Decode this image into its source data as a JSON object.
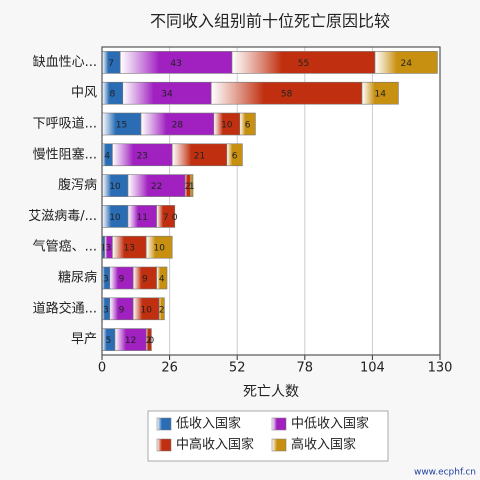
{
  "chart_data": {
    "type": "stacked-bar-horizontal",
    "title": "不同收入组别前十位死亡原因比较",
    "x_label": "死亡人数",
    "watermark": "www.ecphf.cn",
    "categories": [
      "缺血性心...",
      "中风",
      "下呼吸道...",
      "慢性阻塞...",
      "腹泻病",
      "艾滋病毒/...",
      "气管癌、...",
      "糖尿病",
      "道路交通...",
      "早产"
    ],
    "series": [
      {
        "name": "低收入国家",
        "color": "#2a6db5",
        "values": [
          7,
          8,
          15,
          4,
          10,
          10,
          1,
          3,
          3,
          5
        ]
      },
      {
        "name": "中低收入国家",
        "color": "#a020c0",
        "values": [
          43,
          34,
          28,
          23,
          22,
          11,
          3,
          9,
          9,
          12
        ]
      },
      {
        "name": "中高收入国家",
        "color": "#c03010",
        "values": [
          55,
          58,
          10,
          21,
          2,
          7,
          13,
          9,
          10,
          2
        ]
      },
      {
        "name": "高收入国家",
        "color": "#c89010",
        "values": [
          24,
          14,
          6,
          6,
          1,
          0,
          10,
          4,
          2,
          0
        ]
      }
    ],
    "xlim": [
      0,
      130
    ],
    "xticks": [
      0,
      26,
      52,
      78,
      104,
      130
    ],
    "grid": true,
    "legend": "bottom"
  }
}
